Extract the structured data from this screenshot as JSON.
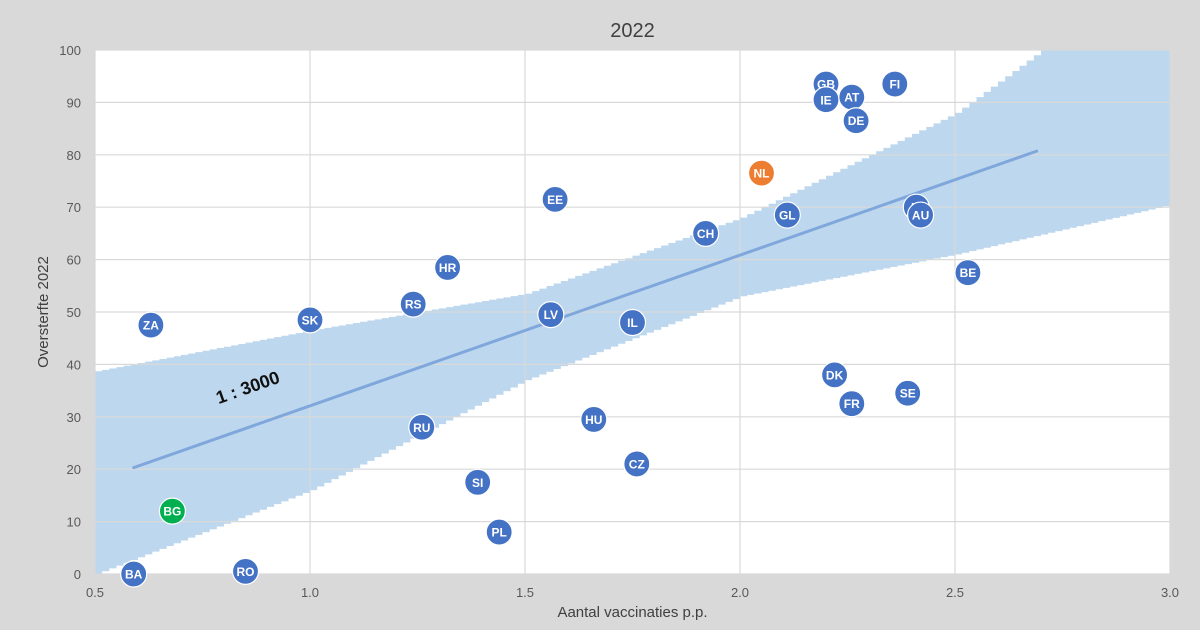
{
  "chart_data": {
    "type": "scatter",
    "title": "2022",
    "xlabel": "Aantal vaccinaties p.p.",
    "ylabel": "Oversterfte 2022",
    "xlim": [
      0.5,
      3.0
    ],
    "ylim": [
      0,
      100
    ],
    "x_ticks": [
      "0.5",
      "1.0",
      "1.5",
      "2.0",
      "2.5",
      "3.0"
    ],
    "y_ticks": [
      "0",
      "10",
      "20",
      "30",
      "40",
      "50",
      "60",
      "70",
      "80",
      "90",
      "100"
    ],
    "grid": true,
    "colors": {
      "default": "#4472c4",
      "NL": "#ed7d31",
      "BG": "#00b050",
      "band": "#bdd7ee",
      "trend": "#7fa7dc",
      "plot_bg": "#ffffff",
      "grid": "#d9d9d9"
    },
    "points": [
      {
        "label": "BA",
        "x": 0.59,
        "y": 0
      },
      {
        "label": "RO",
        "x": 0.85,
        "y": 0.5
      },
      {
        "label": "BG",
        "x": 0.68,
        "y": 12
      },
      {
        "label": "ZA",
        "x": 0.63,
        "y": 47.5
      },
      {
        "label": "SK",
        "x": 1.0,
        "y": 48.5
      },
      {
        "label": "RS",
        "x": 1.24,
        "y": 51.5
      },
      {
        "label": "HR",
        "x": 1.32,
        "y": 58.5
      },
      {
        "label": "RU",
        "x": 1.26,
        "y": 28
      },
      {
        "label": "SI",
        "x": 1.39,
        "y": 17.5
      },
      {
        "label": "PL",
        "x": 1.44,
        "y": 8
      },
      {
        "label": "LV",
        "x": 1.56,
        "y": 49.5
      },
      {
        "label": "EE",
        "x": 1.57,
        "y": 71.5
      },
      {
        "label": "HU",
        "x": 1.66,
        "y": 29.5
      },
      {
        "label": "IL",
        "x": 1.75,
        "y": 48
      },
      {
        "label": "CZ",
        "x": 1.76,
        "y": 21
      },
      {
        "label": "CH",
        "x": 1.92,
        "y": 65
      },
      {
        "label": "NL",
        "x": 2.05,
        "y": 76.5
      },
      {
        "label": "GL",
        "x": 2.11,
        "y": 68.5
      },
      {
        "label": "GB",
        "x": 2.2,
        "y": 93.5
      },
      {
        "label": "IE",
        "x": 2.2,
        "y": 90.5
      },
      {
        "label": "AT",
        "x": 2.26,
        "y": 91
      },
      {
        "label": "DE",
        "x": 2.27,
        "y": 86.5
      },
      {
        "label": "FI",
        "x": 2.36,
        "y": 93.5
      },
      {
        "label": "DK",
        "x": 2.22,
        "y": 38
      },
      {
        "label": "FR",
        "x": 2.26,
        "y": 32.5
      },
      {
        "label": "SE",
        "x": 2.39,
        "y": 34.5
      },
      {
        "label": "IT",
        "x": 2.41,
        "y": 70
      },
      {
        "label": "AU",
        "x": 2.42,
        "y": 68.5
      },
      {
        "label": "BE",
        "x": 2.53,
        "y": 57.5
      }
    ],
    "trendline": {
      "x": [
        0.59,
        2.69
      ],
      "y": [
        20.3,
        80.7
      ],
      "label": "1 : 3000"
    },
    "confidence_band": {
      "upper": [
        [
          0.5,
          38.7
        ],
        [
          1.0,
          46.5
        ],
        [
          1.5,
          53.5
        ],
        [
          2.0,
          68.0
        ],
        [
          2.5,
          88.0
        ],
        [
          2.7,
          100.0
        ],
        [
          3.0,
          100.0
        ]
      ],
      "lower": [
        [
          0.5,
          0.0
        ],
        [
          1.0,
          16.0
        ],
        [
          1.5,
          37.0
        ],
        [
          2.0,
          53.0
        ],
        [
          2.5,
          61.0
        ],
        [
          3.0,
          70.5
        ]
      ]
    }
  }
}
